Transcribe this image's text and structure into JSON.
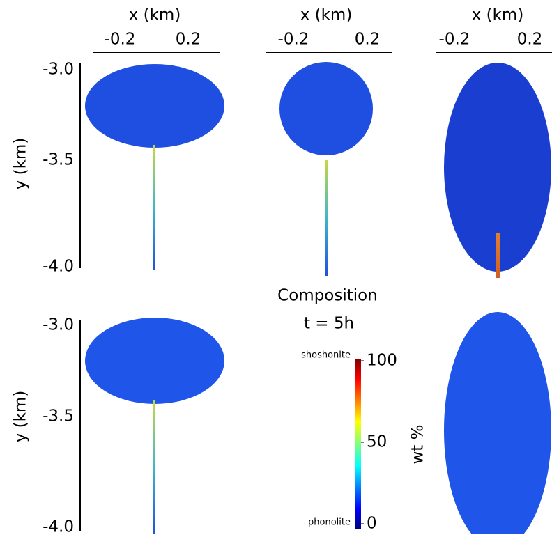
{
  "panels_top_axes": [
    {
      "label": "x (km)",
      "ticks": [
        "-0.2",
        "0.2"
      ]
    },
    {
      "label": "x (km)",
      "ticks": [
        "-0.2",
        "0.2"
      ]
    },
    {
      "label": "x (km)",
      "ticks": [
        "-0.2",
        "0.2"
      ]
    }
  ],
  "left_axes": [
    {
      "label": "y (km)",
      "ticks": [
        "-3.0",
        "-3.5",
        "-4.0"
      ]
    },
    {
      "label": "y (km)",
      "ticks": [
        "-3.0",
        "-3.5",
        "-4.0"
      ]
    }
  ],
  "colorbar": {
    "title": "Composition",
    "subtitle": "t = 5h",
    "label": "wt %",
    "top_label": "shoshonite",
    "bottom_label": "phonolite",
    "lim": [
      0,
      100
    ],
    "ticks": [
      0,
      50,
      100
    ]
  }
}
